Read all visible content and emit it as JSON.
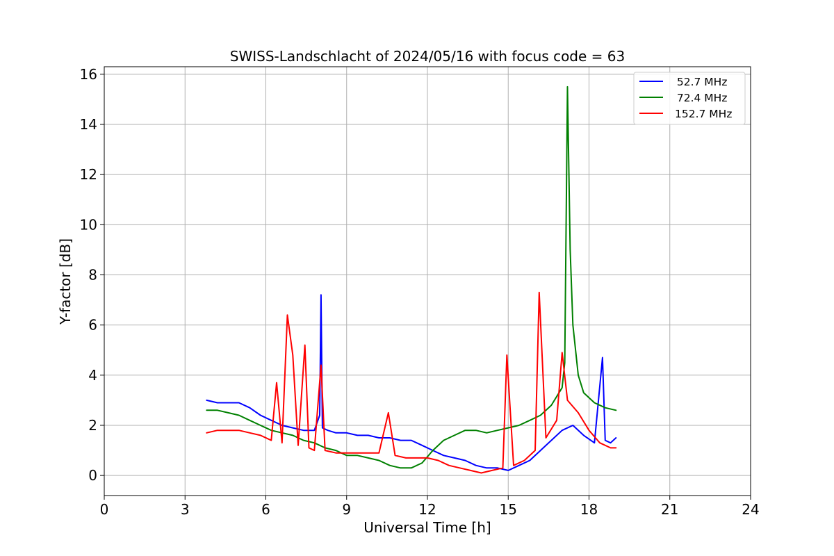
{
  "chart_data": {
    "type": "line",
    "title": "SWISS-Landschlacht of 2024/05/16 with focus code = 63",
    "xlabel": "Universal Time [h]",
    "ylabel": "Y-factor [dB]",
    "xlim": [
      0,
      24
    ],
    "ylim": [
      -0.8,
      16.3
    ],
    "xticks": [
      0,
      3,
      6,
      9,
      12,
      15,
      18,
      21,
      24
    ],
    "yticks": [
      0,
      2,
      4,
      6,
      8,
      10,
      12,
      14,
      16
    ],
    "grid": true,
    "legend_position": "top-right",
    "series": [
      {
        "name": "  52.7 MHz",
        "color": "#0000ff",
        "x": [
          3.8,
          4.2,
          4.6,
          5.0,
          5.4,
          5.8,
          6.2,
          6.6,
          7.0,
          7.4,
          7.8,
          8.0,
          8.05,
          8.1,
          8.3,
          8.6,
          9.0,
          9.4,
          9.8,
          10.2,
          10.6,
          11.0,
          11.4,
          11.8,
          12.2,
          12.6,
          13.0,
          13.4,
          13.8,
          14.2,
          14.6,
          15.0,
          15.4,
          15.8,
          16.2,
          16.6,
          17.0,
          17.4,
          17.8,
          18.2,
          18.5,
          18.6,
          18.8,
          19.0
        ],
        "y": [
          3.0,
          2.9,
          2.9,
          2.9,
          2.7,
          2.4,
          2.2,
          2.0,
          1.9,
          1.8,
          1.8,
          2.4,
          7.2,
          1.9,
          1.8,
          1.7,
          1.7,
          1.6,
          1.6,
          1.5,
          1.5,
          1.4,
          1.4,
          1.2,
          1.0,
          0.8,
          0.7,
          0.6,
          0.4,
          0.3,
          0.3,
          0.2,
          0.4,
          0.6,
          1.0,
          1.4,
          1.8,
          2.0,
          1.6,
          1.3,
          4.7,
          1.4,
          1.3,
          1.5
        ]
      },
      {
        "name": "  72.4 MHz",
        "color": "#008000",
        "x": [
          3.8,
          4.2,
          4.6,
          5.0,
          5.4,
          5.8,
          6.2,
          6.6,
          7.0,
          7.4,
          7.8,
          8.2,
          8.6,
          9.0,
          9.4,
          9.8,
          10.2,
          10.6,
          11.0,
          11.4,
          11.8,
          12.2,
          12.6,
          13.0,
          13.4,
          13.8,
          14.2,
          14.6,
          15.0,
          15.4,
          15.8,
          16.2,
          16.6,
          17.0,
          17.1,
          17.2,
          17.3,
          17.4,
          17.6,
          17.8,
          18.2,
          18.6,
          19.0
        ],
        "y": [
          2.6,
          2.6,
          2.5,
          2.4,
          2.2,
          2.0,
          1.8,
          1.7,
          1.6,
          1.4,
          1.3,
          1.1,
          1.0,
          0.8,
          0.8,
          0.7,
          0.6,
          0.4,
          0.3,
          0.3,
          0.5,
          1.0,
          1.4,
          1.6,
          1.8,
          1.8,
          1.7,
          1.8,
          1.9,
          2.0,
          2.2,
          2.4,
          2.8,
          3.5,
          4.5,
          15.5,
          9.0,
          6.0,
          4.0,
          3.3,
          2.9,
          2.7,
          2.6
        ]
      },
      {
        "name": "152.7 MHz",
        "color": "#ff0000",
        "x": [
          3.8,
          4.2,
          4.6,
          5.0,
          5.4,
          5.8,
          6.2,
          6.4,
          6.6,
          6.8,
          7.0,
          7.2,
          7.45,
          7.6,
          7.8,
          8.05,
          8.2,
          8.6,
          9.0,
          9.4,
          9.8,
          10.2,
          10.55,
          10.8,
          11.2,
          11.6,
          12.0,
          12.4,
          12.8,
          13.2,
          13.6,
          14.0,
          14.4,
          14.8,
          14.95,
          15.2,
          15.6,
          16.0,
          16.15,
          16.4,
          16.8,
          17.0,
          17.2,
          17.6,
          18.0,
          18.4,
          18.8,
          19.0
        ],
        "y": [
          1.7,
          1.8,
          1.8,
          1.8,
          1.7,
          1.6,
          1.4,
          3.7,
          1.3,
          6.4,
          4.8,
          1.2,
          5.2,
          1.1,
          1.0,
          4.4,
          1.0,
          0.9,
          0.9,
          0.9,
          0.9,
          0.9,
          2.5,
          0.8,
          0.7,
          0.7,
          0.7,
          0.6,
          0.4,
          0.3,
          0.2,
          0.1,
          0.2,
          0.3,
          4.8,
          0.4,
          0.6,
          1.0,
          7.3,
          1.5,
          2.2,
          4.9,
          3.0,
          2.5,
          1.8,
          1.3,
          1.1,
          1.1
        ]
      }
    ]
  }
}
